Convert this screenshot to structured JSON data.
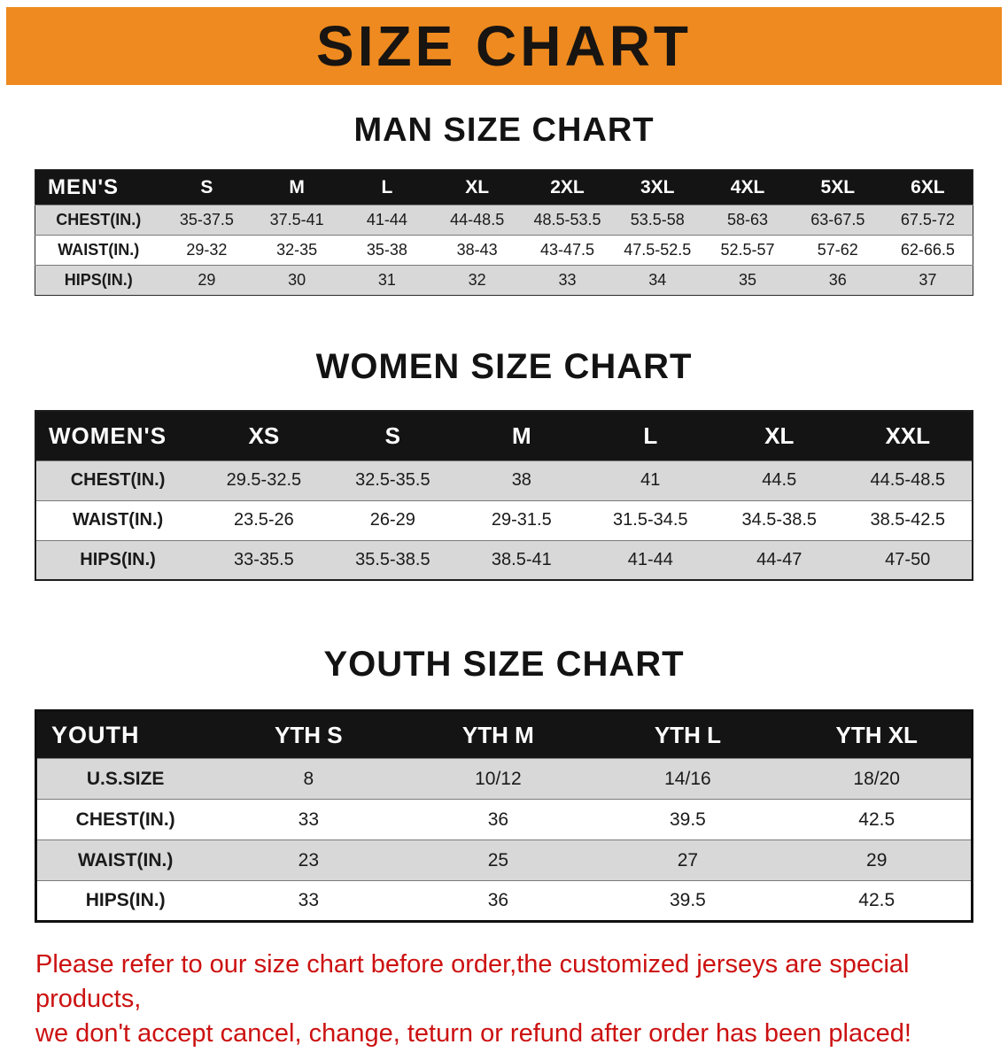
{
  "banner": {
    "title": "SIZE CHART"
  },
  "sections": [
    {
      "title": "MAN SIZE CHART",
      "header": [
        "MEN'S",
        "S",
        "M",
        "L",
        "XL",
        "2XL",
        "3XL",
        "4XL",
        "5XL",
        "6XL"
      ],
      "rows": [
        [
          "CHEST(IN.)",
          "35-37.5",
          "37.5-41",
          "41-44",
          "44-48.5",
          "48.5-53.5",
          "53.5-58",
          "58-63",
          "63-67.5",
          "67.5-72"
        ],
        [
          "WAIST(IN.)",
          "29-32",
          "32-35",
          "35-38",
          "38-43",
          "43-47.5",
          "47.5-52.5",
          "52.5-57",
          "57-62",
          "62-66.5"
        ],
        [
          "HIPS(IN.)",
          "29",
          "30",
          "31",
          "32",
          "33",
          "34",
          "35",
          "36",
          "37"
        ]
      ]
    },
    {
      "title": "WOMEN SIZE CHART",
      "header": [
        "WOMEN'S",
        "XS",
        "S",
        "M",
        "L",
        "XL",
        "XXL"
      ],
      "rows": [
        [
          "CHEST(IN.)",
          "29.5-32.5",
          "32.5-35.5",
          "38",
          "41",
          "44.5",
          "44.5-48.5"
        ],
        [
          "WAIST(IN.)",
          "23.5-26",
          "26-29",
          "29-31.5",
          "31.5-34.5",
          "34.5-38.5",
          "38.5-42.5"
        ],
        [
          "HIPS(IN.)",
          "33-35.5",
          "35.5-38.5",
          "38.5-41",
          "41-44",
          "44-47",
          "47-50"
        ]
      ]
    },
    {
      "title": "YOUTH SIZE CHART",
      "header": [
        "YOUTH",
        "YTH S",
        "YTH M",
        "YTH L",
        "YTH XL"
      ],
      "rows": [
        [
          "U.S.SIZE",
          "8",
          "10/12",
          "14/16",
          "18/20"
        ],
        [
          "CHEST(IN.)",
          "33",
          "36",
          "39.5",
          "42.5"
        ],
        [
          "WAIST(IN.)",
          "23",
          "25",
          "27",
          "29"
        ],
        [
          "HIPS(IN.)",
          "33",
          "36",
          "39.5",
          "42.5"
        ]
      ]
    }
  ],
  "footer": {
    "line1": "Please refer to our size chart before order,the customized jerseys are special products,",
    "line2": "we don't accept cancel, change, teturn or refund after order has been placed!"
  },
  "colors": {
    "banner_bg": "#EE8A1F",
    "header_bg": "#141414",
    "row_alt_bg": "#D8D8D8",
    "footer_text": "#CC1111"
  }
}
